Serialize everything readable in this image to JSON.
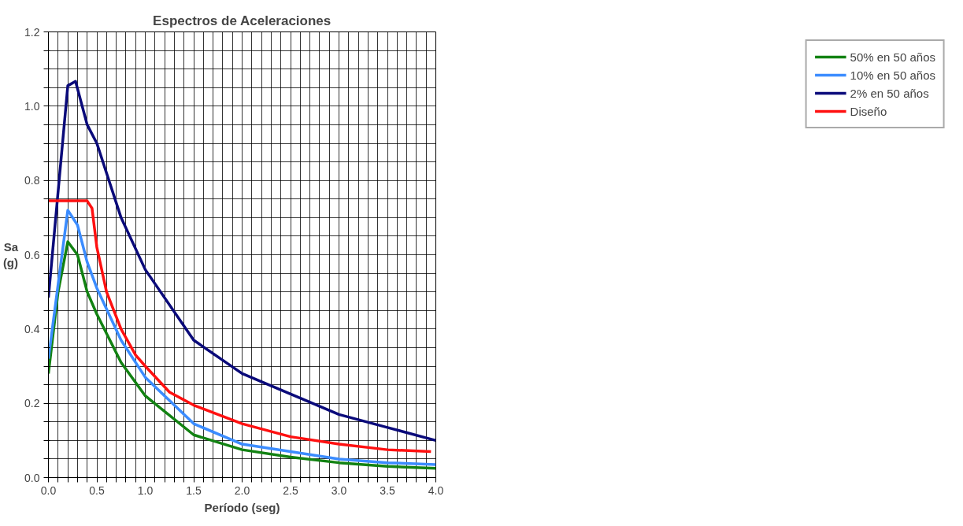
{
  "chart_data": {
    "type": "line",
    "title": "Espectros de Aceleraciones",
    "xlabel": "Período (seg)",
    "ylabel": "Sa (g)",
    "xlim": [
      0,
      4
    ],
    "ylim": [
      0,
      1.2
    ],
    "xticks": [
      {
        "value": 0,
        "label": "0.0"
      },
      {
        "value": 0.1,
        "label": null
      },
      {
        "value": 0.2,
        "label": null
      },
      {
        "value": 0.3,
        "label": null
      },
      {
        "value": 0.4,
        "label": null
      },
      {
        "value": 0.5,
        "label": "0.5"
      },
      {
        "value": 0.6,
        "label": null
      },
      {
        "value": 0.7,
        "label": null
      },
      {
        "value": 0.8,
        "label": null
      },
      {
        "value": 0.9,
        "label": null
      },
      {
        "value": 1,
        "label": "1.0"
      },
      {
        "value": 1.1,
        "label": null
      },
      {
        "value": 1.2,
        "label": null
      },
      {
        "value": 1.3,
        "label": null
      },
      {
        "value": 1.4,
        "label": null
      },
      {
        "value": 1.5,
        "label": "1.5"
      },
      {
        "value": 1.6,
        "label": null
      },
      {
        "value": 1.7,
        "label": null
      },
      {
        "value": 1.8,
        "label": null
      },
      {
        "value": 1.9,
        "label": null
      },
      {
        "value": 2,
        "label": "2.0"
      },
      {
        "value": 2.1,
        "label": null
      },
      {
        "value": 2.2,
        "label": null
      },
      {
        "value": 2.3,
        "label": null
      },
      {
        "value": 2.4,
        "label": null
      },
      {
        "value": 2.5,
        "label": "2.5"
      },
      {
        "value": 2.6,
        "label": null
      },
      {
        "value": 2.7,
        "label": null
      },
      {
        "value": 2.8,
        "label": null
      },
      {
        "value": 2.9,
        "label": null
      },
      {
        "value": 3,
        "label": "3.0"
      },
      {
        "value": 3.1,
        "label": null
      },
      {
        "value": 3.2,
        "label": null
      },
      {
        "value": 3.3,
        "label": null
      },
      {
        "value": 3.4,
        "label": null
      },
      {
        "value": 3.5,
        "label": "3.5"
      },
      {
        "value": 3.6,
        "label": null
      },
      {
        "value": 3.7,
        "label": null
      },
      {
        "value": 3.8,
        "label": null
      },
      {
        "value": 3.9,
        "label": null
      },
      {
        "value": 4,
        "label": "4.0"
      }
    ],
    "yticks": [
      {
        "value": 0,
        "label": "0.0"
      },
      {
        "value": 0.05,
        "label": null
      },
      {
        "value": 0.1,
        "label": null
      },
      {
        "value": 0.15,
        "label": null
      },
      {
        "value": 0.2,
        "label": "0.2"
      },
      {
        "value": 0.25,
        "label": null
      },
      {
        "value": 0.3,
        "label": null
      },
      {
        "value": 0.35,
        "label": null
      },
      {
        "value": 0.4,
        "label": "0.4"
      },
      {
        "value": 0.45,
        "label": null
      },
      {
        "value": 0.5,
        "label": null
      },
      {
        "value": 0.55,
        "label": null
      },
      {
        "value": 0.6,
        "label": "0.6"
      },
      {
        "value": 0.65,
        "label": null
      },
      {
        "value": 0.7,
        "label": null
      },
      {
        "value": 0.75,
        "label": null
      },
      {
        "value": 0.8,
        "label": "0.8"
      },
      {
        "value": 0.85,
        "label": null
      },
      {
        "value": 0.9,
        "label": null
      },
      {
        "value": 0.95,
        "label": null
      },
      {
        "value": 1,
        "label": "1.0"
      },
      {
        "value": 1.05,
        "label": null
      },
      {
        "value": 1.1,
        "label": null
      },
      {
        "value": 1.15,
        "label": null
      },
      {
        "value": 1.2,
        "label": "1.2"
      }
    ],
    "grid": true,
    "legend": "right",
    "marker": "none",
    "line_style": "solid",
    "series": [
      {
        "name": "50% en 50 años",
        "color": "#128212",
        "x": [
          0,
          0.1,
          0.2,
          0.3,
          0.4,
          0.5,
          0.75,
          1.0,
          1.5,
          2.0,
          2.5,
          3.0,
          3.5,
          4.0
        ],
        "values": [
          0.28,
          0.5,
          0.635,
          0.6,
          0.5,
          0.44,
          0.31,
          0.22,
          0.115,
          0.075,
          0.055,
          0.04,
          0.03,
          0.025
        ]
      },
      {
        "name": "10% en 50 años",
        "color": "#3b8cff",
        "x": [
          0,
          0.2,
          0.3,
          0.4,
          0.5,
          0.75,
          1.0,
          1.5,
          2.0,
          2.5,
          3.0,
          3.5,
          4.0
        ],
        "values": [
          0.32,
          0.72,
          0.68,
          0.58,
          0.51,
          0.37,
          0.27,
          0.145,
          0.09,
          0.07,
          0.05,
          0.04,
          0.035
        ]
      },
      {
        "name": "2% en 50 años",
        "color": "#0a0a7a",
        "x": [
          0,
          0.2,
          0.28,
          0.4,
          0.5,
          0.75,
          1.0,
          1.5,
          2.0,
          2.5,
          3.0,
          3.5,
          4.0
        ],
        "values": [
          0.485,
          1.055,
          1.067,
          0.95,
          0.9,
          0.7,
          0.56,
          0.37,
          0.28,
          0.225,
          0.17,
          0.135,
          0.1
        ]
      },
      {
        "name": "Diseño",
        "color": "#ff1010",
        "x": [
          0,
          0.4,
          0.45,
          0.5,
          0.6,
          0.75,
          0.9,
          1.0,
          1.25,
          1.5,
          2.0,
          2.5,
          3.0,
          3.5,
          3.95
        ],
        "values": [
          0.745,
          0.745,
          0.725,
          0.62,
          0.5,
          0.4,
          0.33,
          0.3,
          0.23,
          0.195,
          0.145,
          0.11,
          0.09,
          0.075,
          0.07
        ]
      }
    ]
  }
}
